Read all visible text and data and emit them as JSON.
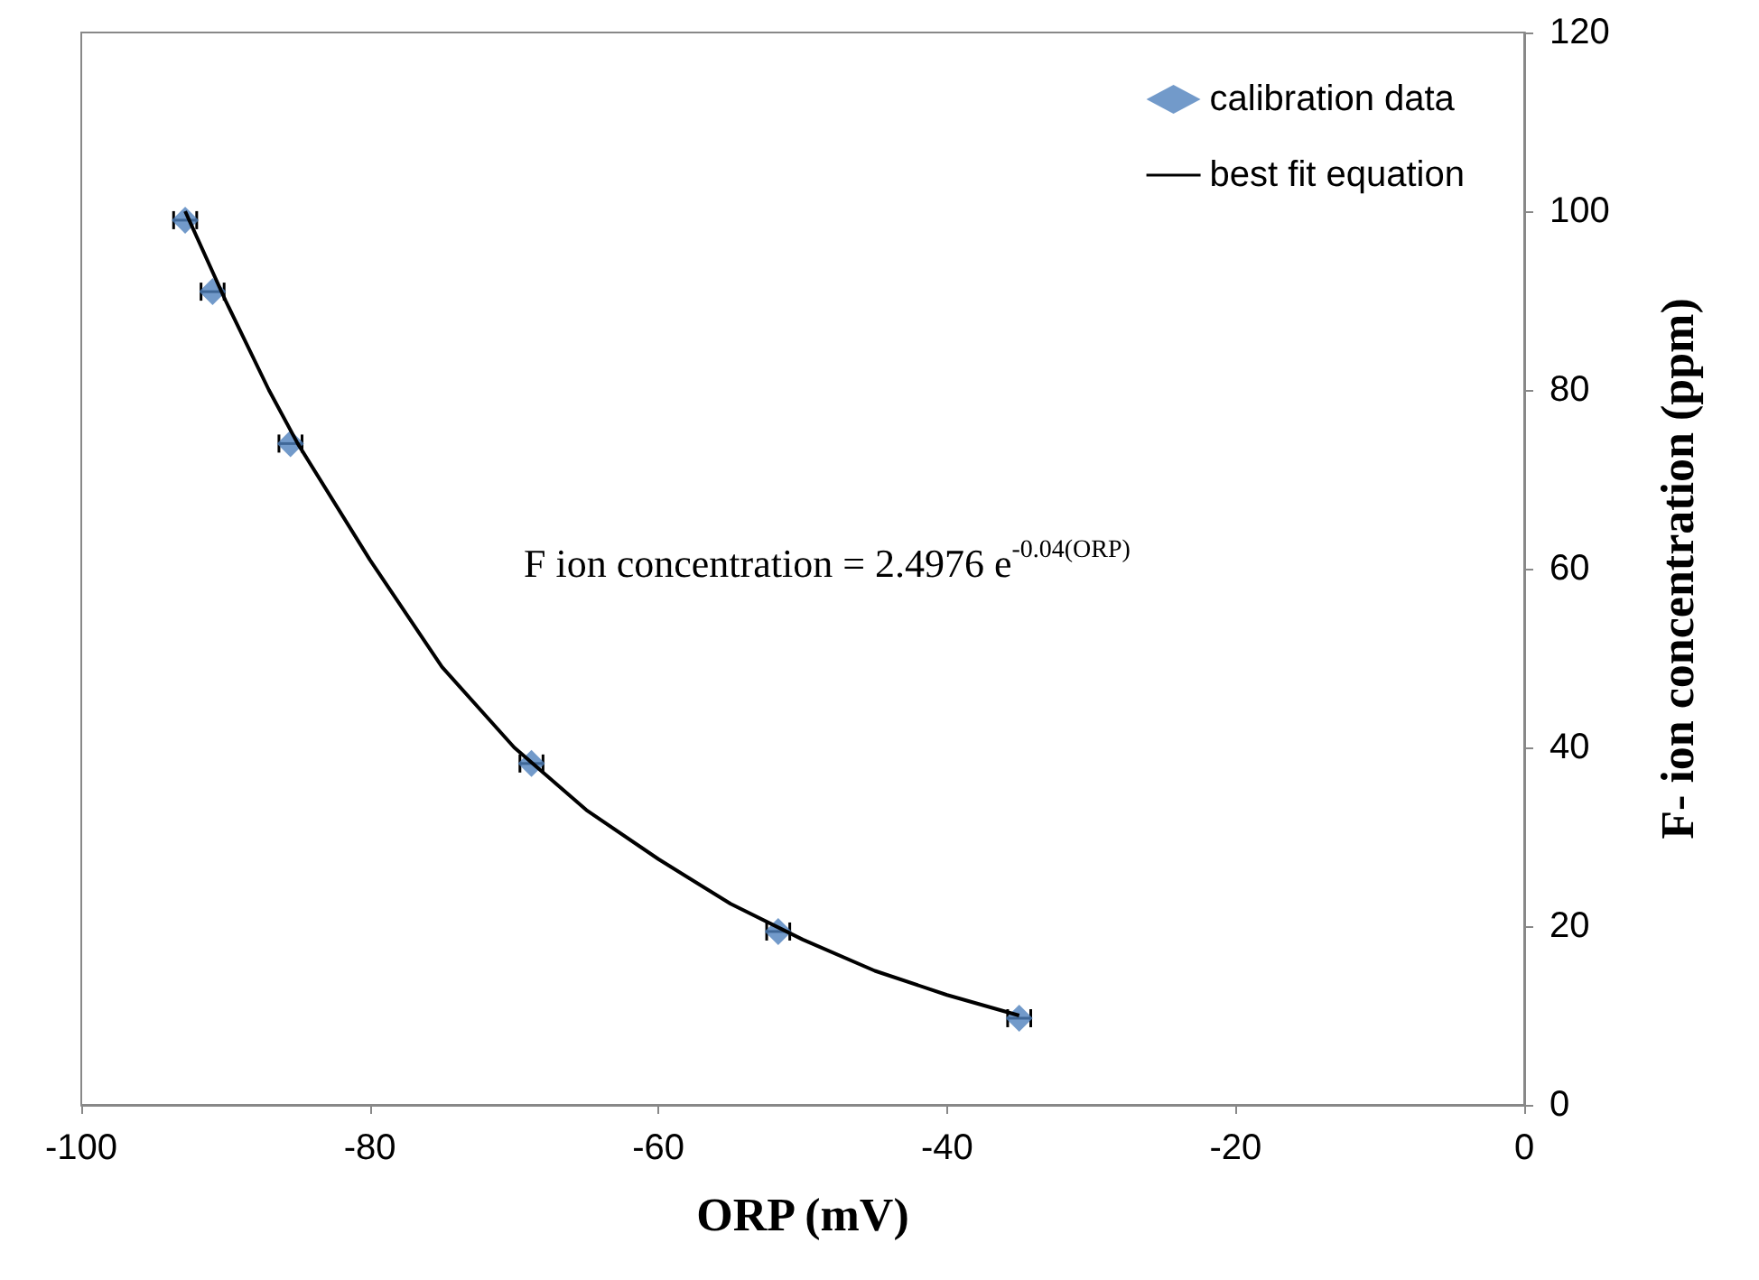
{
  "chart_data": {
    "type": "scatter",
    "xlabel": "ORP (mV)",
    "ylabel": "F- ion concentration (ppm)",
    "xlim": [
      -100,
      0
    ],
    "xticks": [
      -100,
      -80,
      -60,
      -40,
      -20,
      0
    ],
    "ylim": [
      0,
      120
    ],
    "yticks": [
      0,
      20,
      40,
      60,
      80,
      100,
      120
    ],
    "grid": false,
    "legend": "top right",
    "marker": "diamond",
    "annotations": [
      "F ion concentration = 2.4976 e$^{-0.04(ORP)}$"
    ],
    "series": [
      {
        "name": "calibration data",
        "color": "#4f81bd",
        "x": [
          -92.8,
          -90.9,
          -85.5,
          -68.8,
          -51.7,
          -35.0
        ],
        "values": [
          99,
          91,
          74,
          38.2,
          19.4,
          9.7
        ],
        "xerrors": [
          0.8,
          0.8,
          0.8,
          0.8,
          0.8,
          0.8
        ]
      },
      {
        "name": "best fit equation",
        "type": "line",
        "marker": "none",
        "line_style": "solid",
        "color": "#000000",
        "x": [
          -92.8,
          -90,
          -87,
          -85,
          -80,
          -75,
          -70,
          -65,
          -60,
          -55,
          -50,
          -45,
          -40,
          -35
        ],
        "values": [
          100,
          90,
          80,
          74,
          61,
          49,
          40,
          33,
          27.5,
          22.5,
          18.5,
          15,
          12.3,
          10
        ]
      }
    ]
  }
}
